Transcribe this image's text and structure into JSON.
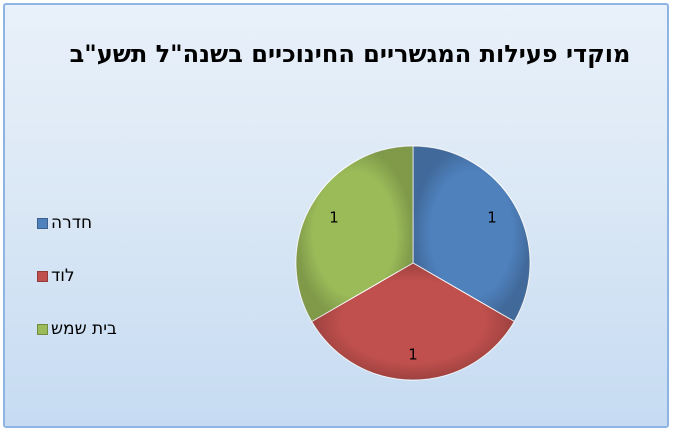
{
  "chart_data": {
    "type": "pie",
    "title": "מוקדי פעילות המגשריים החינוכיים בשנה\"ל תשע\"ב",
    "categories": [
      "חדרה",
      "לוד",
      "בית שמש"
    ],
    "values": [
      1,
      1,
      1
    ],
    "data_labels": [
      "1",
      "1",
      "1"
    ],
    "colors": [
      "#4f81bd",
      "#c0504d",
      "#9bbb59"
    ],
    "legend_position": "left"
  }
}
